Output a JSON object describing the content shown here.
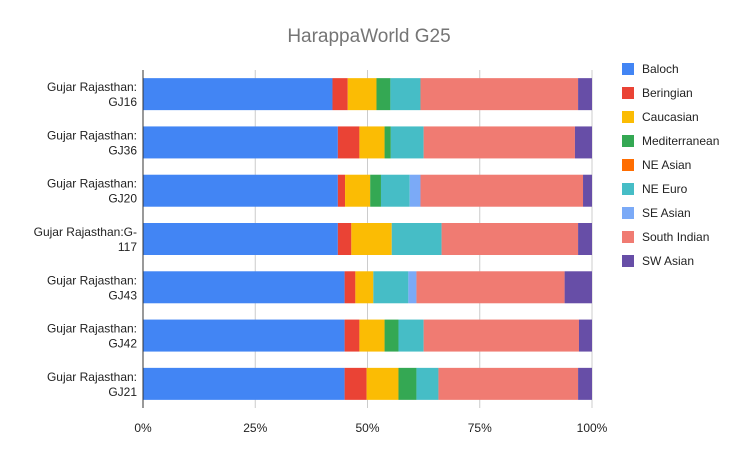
{
  "chart_data": {
    "type": "bar",
    "orientation": "horizontal",
    "stacked": true,
    "normalized": true,
    "title": "HarappaWorld G25",
    "xlabel": "",
    "ylabel": "",
    "xlim": [
      0,
      1
    ],
    "x_ticks": [
      "0%",
      "25%",
      "50%",
      "75%",
      "100%"
    ],
    "grid": true,
    "legend_position": "right",
    "categories": [
      [
        "Gujar Rajasthan:",
        "GJ16"
      ],
      [
        "Gujar Rajasthan:",
        "GJ36"
      ],
      [
        "Gujar Rajasthan:",
        "GJ20"
      ],
      [
        "Gujar Rajasthan:G-",
        "117"
      ],
      [
        "Gujar Rajasthan:",
        "GJ43"
      ],
      [
        "Gujar Rajasthan:",
        "GJ42"
      ],
      [
        "Gujar Rajasthan:",
        "GJ21"
      ]
    ],
    "series": [
      {
        "name": "Baloch",
        "color": "#4285f4",
        "values": [
          42.2,
          43.4,
          43.4,
          43.4,
          44.9,
          44.9,
          44.9
        ]
      },
      {
        "name": "Beringian",
        "color": "#ea4335",
        "values": [
          3.4,
          4.8,
          1.6,
          3.0,
          2.4,
          3.3,
          4.9
        ]
      },
      {
        "name": "Caucasian",
        "color": "#fbbc04",
        "values": [
          6.4,
          5.6,
          5.6,
          9.0,
          4.0,
          5.6,
          7.1
        ]
      },
      {
        "name": "Mediterranean",
        "color": "#34a853",
        "values": [
          3.1,
          1.4,
          2.4,
          0,
          0,
          3.1,
          4.0
        ]
      },
      {
        "name": "NE Asian",
        "color": "#ff6d01",
        "values": [
          0,
          0,
          0,
          0,
          0,
          0,
          0
        ]
      },
      {
        "name": "NE Euro",
        "color": "#46bdc6",
        "values": [
          6.7,
          7.3,
          6.4,
          11.1,
          7.8,
          5.6,
          4.9
        ]
      },
      {
        "name": "SE Asian",
        "color": "#7baaf7",
        "values": [
          0,
          0,
          2.4,
          0,
          1.8,
          0,
          0
        ]
      },
      {
        "name": "South Indian",
        "color": "#f07b72",
        "values": [
          35.1,
          33.7,
          36.2,
          30.4,
          33.0,
          34.6,
          31.1
        ]
      },
      {
        "name": "SW Asian",
        "color": "#674ea7",
        "values": [
          3.1,
          3.8,
          2.0,
          3.1,
          6.1,
          2.9,
          3.1
        ]
      }
    ]
  }
}
